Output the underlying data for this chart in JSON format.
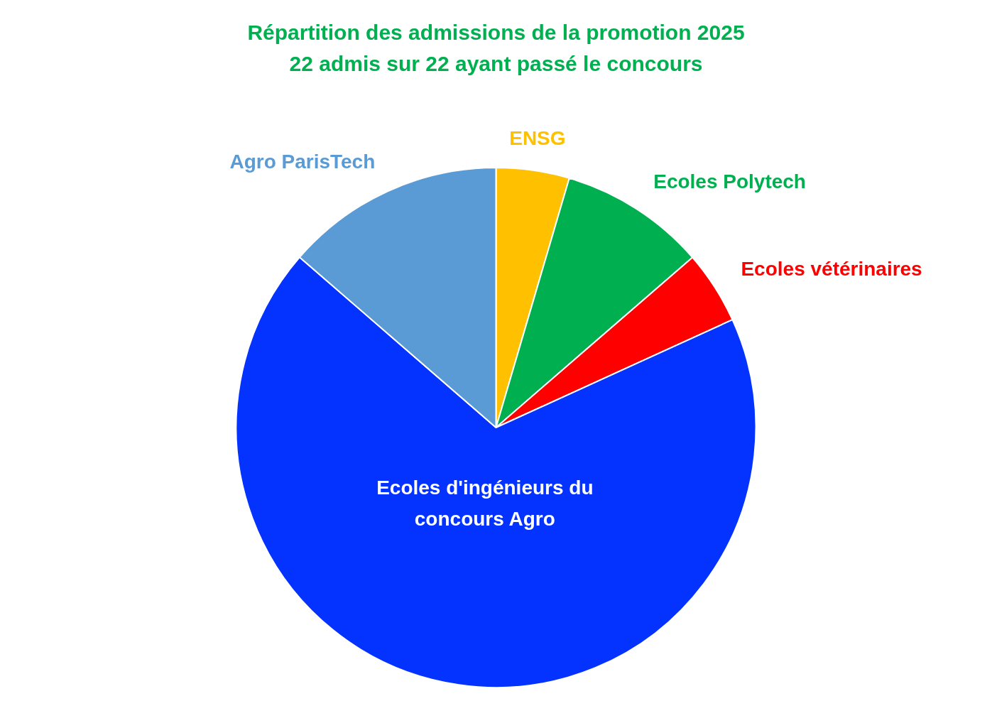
{
  "chart_data": {
    "type": "pie",
    "title": "Répartition des admissions de la promotion 2025",
    "subtitle": "22 admis sur 22 ayant passé le concours",
    "categories": [
      "ENSG",
      "Ecoles Polytech",
      "Ecoles vétérinaires",
      "Ecoles d'ingénieurs du concours Agro",
      "Agro ParisTech"
    ],
    "values": [
      4.55,
      9.09,
      4.55,
      68.18,
      13.63
    ],
    "colors": [
      "#ffc000",
      "#00b050",
      "#ff0000",
      "#0433ff",
      "#5b9bd5"
    ]
  }
}
